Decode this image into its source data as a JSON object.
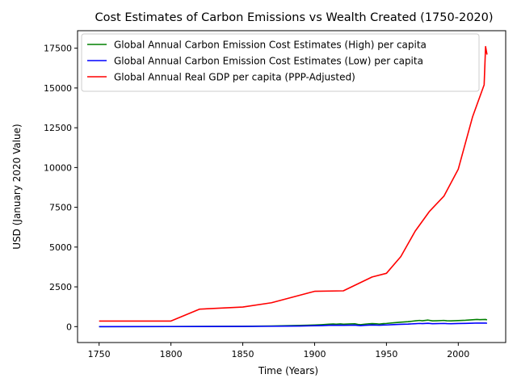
{
  "chart_data": {
    "type": "line",
    "title": "Cost Estimates of Carbon Emissions vs Wealth Created (1750-2020)",
    "xlabel": "Time (Years)",
    "ylabel": "USD (January 2020 Value)",
    "xlim": [
      1735,
      2033
    ],
    "ylim": [
      -1000,
      18600
    ],
    "xticks": [
      1750,
      1800,
      1850,
      1900,
      1950,
      2000
    ],
    "yticks": [
      0,
      2500,
      5000,
      7500,
      10000,
      12500,
      15000,
      17500
    ],
    "grid": false,
    "legend_position": "top-left",
    "series": [
      {
        "name": "Global Annual Carbon Emission Cost Estimates (High) per capita",
        "color": "#008000",
        "x": [
          1750,
          1800,
          1850,
          1870,
          1880,
          1890,
          1900,
          1905,
          1910,
          1913,
          1915,
          1918,
          1920,
          1925,
          1928,
          1930,
          1932,
          1935,
          1938,
          1940,
          1943,
          1945,
          1948,
          1950,
          1955,
          1960,
          1965,
          1970,
          1973,
          1975,
          1979,
          1982,
          1985,
          1990,
          1992,
          1995,
          2000,
          2005,
          2010,
          2013,
          2015,
          2019,
          2020
        ],
        "values": [
          0,
          5,
          20,
          40,
          55,
          75,
          100,
          120,
          150,
          165,
          150,
          170,
          150,
          170,
          180,
          140,
          120,
          150,
          180,
          190,
          180,
          160,
          190,
          200,
          240,
          280,
          310,
          360,
          390,
          370,
          410,
          360,
          370,
          390,
          370,
          360,
          380,
          400,
          430,
          450,
          440,
          450,
          420
        ]
      },
      {
        "name": "Global Annual Carbon Emission Cost Estimates (Low) per capita",
        "color": "#0000ff",
        "x": [
          1750,
          1800,
          1850,
          1870,
          1880,
          1890,
          1900,
          1905,
          1910,
          1913,
          1915,
          1918,
          1920,
          1925,
          1928,
          1930,
          1932,
          1935,
          1938,
          1940,
          1943,
          1945,
          1948,
          1950,
          1955,
          1960,
          1965,
          1970,
          1973,
          1975,
          1979,
          1982,
          1985,
          1990,
          1992,
          1995,
          2000,
          2005,
          2010,
          2013,
          2015,
          2019,
          2020
        ],
        "values": [
          0,
          3,
          12,
          22,
          30,
          40,
          55,
          65,
          80,
          88,
          80,
          90,
          80,
          90,
          95,
          75,
          65,
          80,
          95,
          100,
          95,
          85,
          100,
          105,
          125,
          145,
          160,
          185,
          200,
          190,
          210,
          185,
          190,
          200,
          190,
          185,
          195,
          205,
          215,
          225,
          220,
          225,
          210
        ]
      },
      {
        "name": "Global Annual Real GDP per capita (PPP-Adjusted)",
        "color": "#ff0000",
        "x": [
          1750,
          1800,
          1820,
          1850,
          1870,
          1900,
          1920,
          1940,
          1950,
          1960,
          1970,
          1980,
          1990,
          2000,
          2010,
          2018,
          2019,
          2020
        ],
        "values": [
          350,
          350,
          1100,
          1230,
          1500,
          2220,
          2250,
          3120,
          3350,
          4400,
          6000,
          7250,
          8200,
          9900,
          13200,
          15200,
          17600,
          17100
        ]
      }
    ]
  }
}
